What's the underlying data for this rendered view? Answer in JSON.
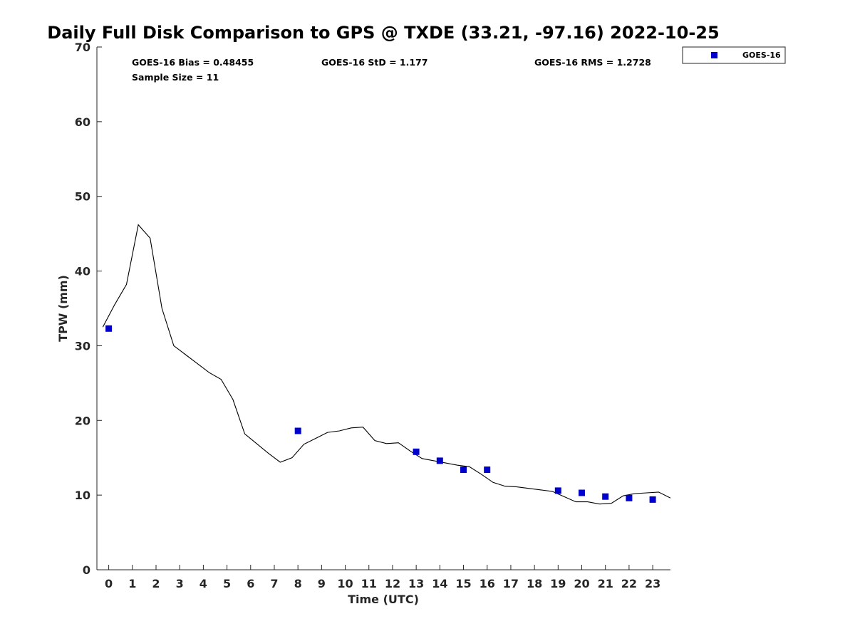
{
  "chart_data": {
    "type": "scatter",
    "title": "Daily Full Disk Comparison to GPS @ TXDE (33.21, -97.16) 2022-10-25",
    "xlabel": "Time (UTC)",
    "ylabel": "TPW (mm)",
    "xlim": [
      -0.5,
      23.75
    ],
    "ylim": [
      0,
      70
    ],
    "xticks": [
      0,
      1,
      2,
      3,
      4,
      5,
      6,
      7,
      8,
      9,
      10,
      11,
      12,
      13,
      14,
      15,
      16,
      17,
      18,
      19,
      20,
      21,
      22,
      23
    ],
    "xtick_labels": [
      "0",
      "1",
      "2",
      "3",
      "4",
      "5",
      "6",
      "7",
      "8",
      "9",
      "10",
      "11",
      "12",
      "13",
      "14",
      "15",
      "16",
      "17",
      "18",
      "19",
      "20",
      "21",
      "22",
      "23"
    ],
    "yticks": [
      0,
      10,
      20,
      30,
      40,
      50,
      60,
      70
    ],
    "ytick_labels": [
      "0",
      "10",
      "20",
      "30",
      "40",
      "50",
      "60",
      "70"
    ],
    "grid": false,
    "legend_position": "top-right",
    "stats": {
      "bias": "GOES-16 Bias = 0.48455",
      "sample_size": "Sample Size = 11",
      "std": "GOES-16 StD = 1.177",
      "rms": "GOES-16 RMS = 1.2728"
    },
    "series": [
      {
        "name": "GOES-16",
        "kind": "scatter",
        "marker": "square",
        "color": "#0000cc",
        "x": [
          0,
          8,
          13,
          14,
          15,
          16,
          19,
          20,
          21,
          22,
          23
        ],
        "y": [
          32.3,
          18.6,
          15.8,
          14.6,
          13.4,
          13.4,
          10.6,
          10.3,
          9.8,
          9.6,
          9.4
        ]
      },
      {
        "kind": "line",
        "color": "#000000",
        "x": [
          -0.25,
          0.25,
          0.75,
          1.25,
          1.75,
          2.25,
          2.75,
          3.25,
          3.75,
          4.25,
          4.75,
          5.25,
          5.75,
          6.25,
          6.75,
          7.25,
          7.75,
          8.25,
          8.75,
          9.25,
          9.75,
          10.25,
          10.75,
          11.25,
          11.75,
          12.25,
          12.75,
          13.25,
          13.75,
          14.25,
          14.75,
          15.25,
          15.75,
          16.25,
          16.75,
          17.25,
          17.75,
          18.25,
          18.75,
          19.25,
          19.75,
          20.25,
          20.75,
          21.25,
          21.75,
          22.25,
          22.75,
          23.25,
          23.75
        ],
        "y": [
          32.5,
          35.5,
          38.2,
          46.2,
          44.4,
          35.0,
          30.0,
          28.8,
          27.6,
          26.4,
          25.5,
          22.8,
          18.2,
          16.9,
          15.6,
          14.4,
          15.0,
          16.8,
          17.6,
          18.4,
          18.6,
          19.0,
          19.1,
          17.3,
          16.9,
          17.0,
          15.9,
          14.9,
          14.6,
          14.3,
          14.0,
          13.8,
          12.8,
          11.7,
          11.2,
          11.1,
          10.9,
          10.7,
          10.5,
          9.8,
          9.1,
          9.1,
          8.8,
          8.9,
          9.9,
          10.2,
          10.3,
          10.4,
          9.6
        ]
      }
    ]
  }
}
